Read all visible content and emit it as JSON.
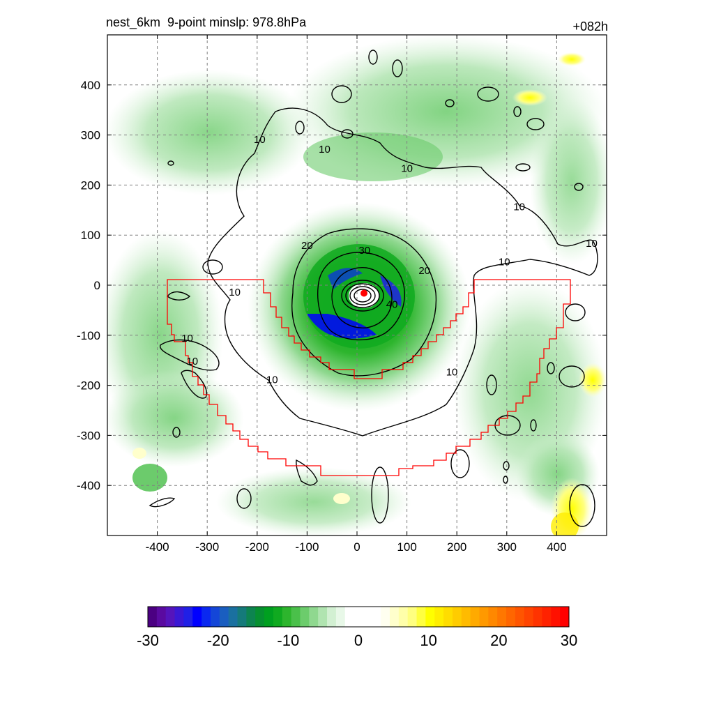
{
  "title_left": "nest_6km  9-point minslp: 978.8hPa",
  "title_right": "+082h",
  "chart_data": {
    "type": "heatmap",
    "xlim": [
      -500,
      500
    ],
    "ylim": [
      -500,
      500
    ],
    "x_ticks": [
      -400,
      -300,
      -200,
      -100,
      0,
      100,
      200,
      300,
      400
    ],
    "y_ticks": [
      400,
      300,
      200,
      100,
      0,
      -100,
      -200,
      -300,
      -400
    ],
    "x_tick_labels": [
      "-400",
      "-300",
      "-200",
      "-100",
      "0",
      "100",
      "200",
      "300",
      "400"
    ],
    "y_tick_labels": [
      "400",
      "300",
      "200",
      "100",
      "0",
      "-100",
      "-200",
      "-300",
      "-400"
    ],
    "grid": true,
    "contour_labels": [
      {
        "text": "10",
        "x": -195,
        "y": 290
      },
      {
        "text": "10",
        "x": -65,
        "y": 270
      },
      {
        "text": "10",
        "x": 100,
        "y": 232
      },
      {
        "text": "10",
        "x": 325,
        "y": 155
      },
      {
        "text": "10",
        "x": 470,
        "y": 82
      },
      {
        "text": "10",
        "x": 295,
        "y": 45
      },
      {
        "text": "10",
        "x": -245,
        "y": -15
      },
      {
        "text": "10",
        "x": -340,
        "y": -107
      },
      {
        "text": "10",
        "x": -330,
        "y": -153
      },
      {
        "text": "10",
        "x": -170,
        "y": -190
      },
      {
        "text": "10",
        "x": 190,
        "y": -175
      },
      {
        "text": "20",
        "x": -100,
        "y": 78
      },
      {
        "text": "30",
        "x": 15,
        "y": 68
      },
      {
        "text": "20",
        "x": 135,
        "y": 28
      },
      {
        "text": "40",
        "x": 70,
        "y": -40
      }
    ],
    "storm_center": {
      "x": 14,
      "y": -16
    },
    "colorbar": {
      "min": -30,
      "max": 30,
      "tick_labels": [
        "-30",
        "-20",
        "-10",
        "0",
        "10",
        "20",
        "30"
      ],
      "colors": [
        "#4b0082",
        "#5a0aa0",
        "#5514bb",
        "#3a18d4",
        "#2020e6",
        "#0000ff",
        "#0a28f0",
        "#1446d8",
        "#1a5ec0",
        "#1a70a0",
        "#157a7a",
        "#0d8450",
        "#069030",
        "#00a020",
        "#10aa20",
        "#2db52d",
        "#4ac04a",
        "#6ccc6c",
        "#8fd88f",
        "#b0e4b0",
        "#d2f0d2",
        "#e8f8e8",
        "#ffffff",
        "#ffffff",
        "#ffffff",
        "#ffffff",
        "#fffff0",
        "#ffffcc",
        "#ffffaa",
        "#ffff80",
        "#ffff40",
        "#ffff00",
        "#ffee00",
        "#ffdd00",
        "#ffcc00",
        "#ffbb00",
        "#ffaa00",
        "#ff9900",
        "#ff8800",
        "#ff7700",
        "#ff6600",
        "#ff5500",
        "#ff4400",
        "#ff3300",
        "#ff2200",
        "#ff1100",
        "#ff0000"
      ]
    }
  }
}
